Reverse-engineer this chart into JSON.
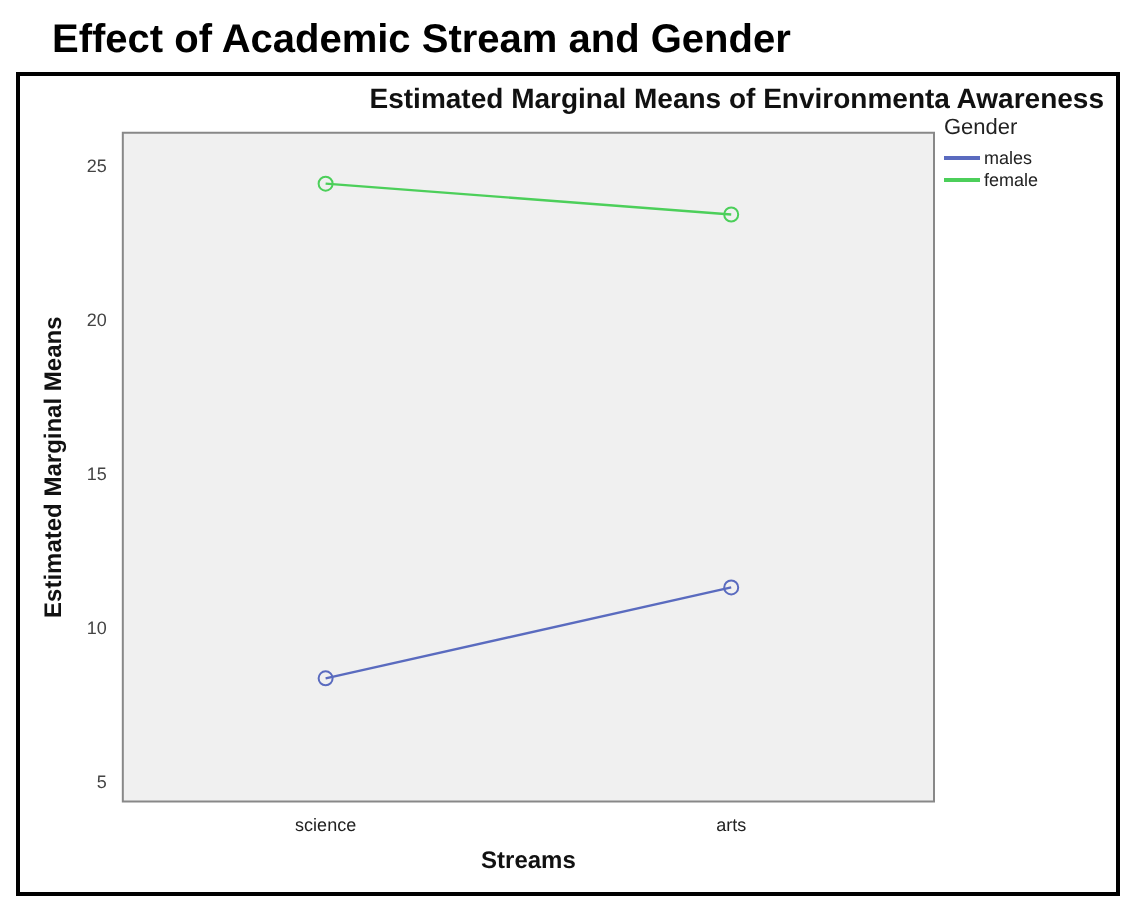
{
  "chart_data": {
    "type": "line",
    "title": "Effect of Academic Stream and Gender",
    "subtitle": "Estimated Marginal Means of Environmenta Awareness",
    "xlabel": "Streams",
    "ylabel": "Estimated Marginal Means",
    "legend_title": "Gender",
    "categories": [
      "science",
      "arts"
    ],
    "series": [
      {
        "name": "males",
        "color": "#5a6bbf",
        "values": [
          8.4,
          11.35
        ]
      },
      {
        "name": "female",
        "color": "#4ccf5a",
        "values": [
          24.45,
          23.45
        ]
      }
    ],
    "ylim": [
      4.4,
      26.1
    ],
    "yticks": [
      5,
      10,
      15,
      20,
      25
    ],
    "grid": false,
    "legend": "top right",
    "marker": "circle",
    "line_style": "solid"
  }
}
